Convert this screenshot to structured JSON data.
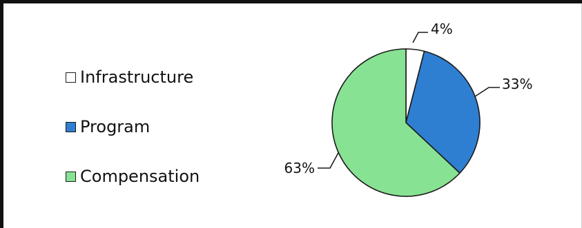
{
  "chart_data": {
    "type": "pie",
    "categories": [
      "Infrastructure",
      "Program",
      "Compensation"
    ],
    "values": [
      4,
      33,
      63
    ],
    "data_labels": [
      "4%",
      "33%",
      "63%"
    ],
    "colors": [
      "#ffffff",
      "#2e7fd1",
      "#88e293"
    ],
    "legend_position": "left"
  }
}
